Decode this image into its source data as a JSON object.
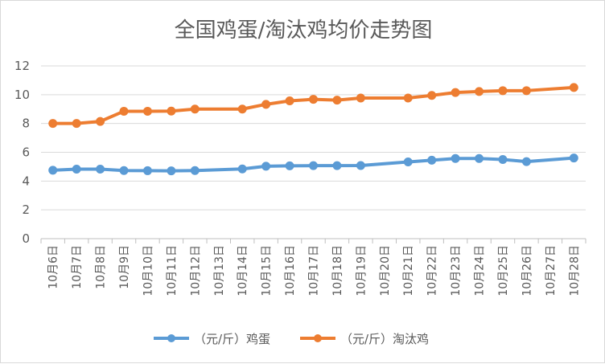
{
  "chart_data": {
    "type": "line",
    "title": "全国鸡蛋/淘汰鸡均价走势图",
    "xlabel": "",
    "ylabel": "",
    "ylim": [
      0,
      12
    ],
    "yticks": [
      "0",
      "2",
      "4",
      "6",
      "8",
      "10",
      "12"
    ],
    "grid": true,
    "legend_position": "bottom",
    "categories": [
      "10月6日",
      "10月7日",
      "10月8日",
      "10月9日",
      "10月10日",
      "10月11日",
      "10月12日",
      "10月13日",
      "10月14日",
      "10月15日",
      "10月16日",
      "10月17日",
      "10月18日",
      "10月19日",
      "10月20日",
      "10月21日",
      "10月22日",
      "10月23日",
      "10月24日",
      "10月25日",
      "10月26日",
      "10月27日",
      "10月28日"
    ],
    "series": [
      {
        "name": "（元/斤）鸡蛋",
        "color": "#5b9bd5",
        "values": [
          4.75,
          4.83,
          4.83,
          4.73,
          4.72,
          4.71,
          4.73,
          null,
          4.84,
          5.03,
          5.06,
          5.07,
          5.07,
          5.08,
          null,
          5.33,
          5.45,
          5.57,
          5.57,
          5.5,
          5.35,
          null,
          5.6
        ]
      },
      {
        "name": "（元/斤）淘汰鸡",
        "color": "#ed7d31",
        "values": [
          8.0,
          8.0,
          8.14,
          8.85,
          8.85,
          8.86,
          9.0,
          null,
          9.0,
          9.33,
          9.57,
          9.68,
          9.62,
          9.77,
          null,
          9.77,
          9.95,
          10.15,
          10.22,
          10.28,
          10.28,
          null,
          10.5
        ]
      }
    ]
  }
}
